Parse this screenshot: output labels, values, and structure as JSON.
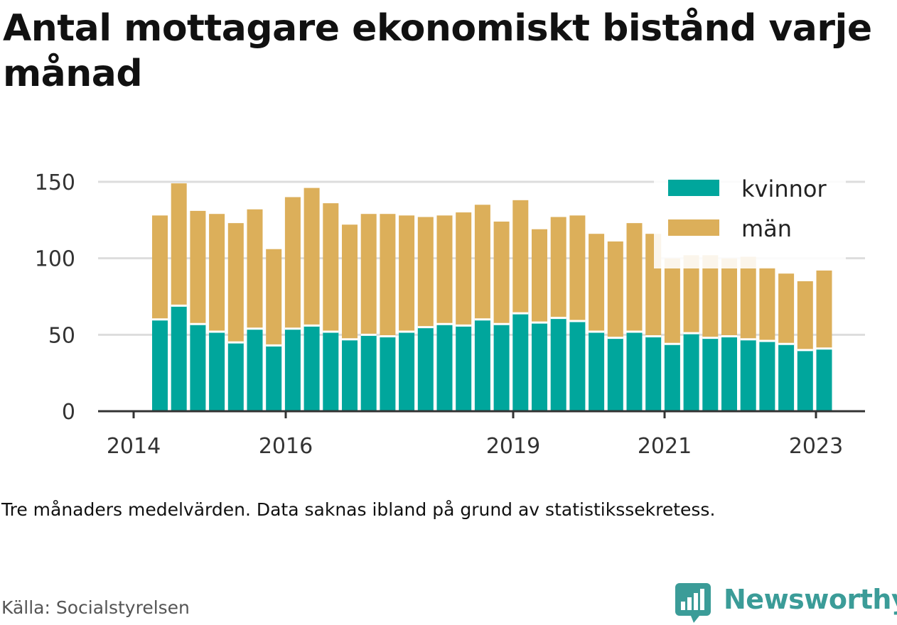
{
  "title": "Antal mottagare ekonomiskt bistånd varje månad",
  "note": "Tre månaders medelvärden. Data saknas ibland på grund av statistikssekretess.",
  "source": "Källa: Socialstyrelsen",
  "brand": {
    "name": "Newsworthy",
    "icon": "bar-chart-speech-icon"
  },
  "colors": {
    "kvinnor": "#00a69c",
    "man": "#dcaf5a",
    "grid": "#dddddd",
    "axis": "#333333"
  },
  "chart_data": {
    "type": "bar",
    "stacked": true,
    "ylim": [
      0,
      150
    ],
    "yticks": [
      0,
      50,
      100,
      150
    ],
    "xticks": [
      "2014",
      "2016",
      "2019",
      "2021",
      "2023"
    ],
    "grid": "horizontal",
    "legend_position": "top-right",
    "series": [
      {
        "name": "kvinnor",
        "values": [
          60,
          69,
          57,
          52,
          45,
          54,
          43,
          54,
          56,
          52,
          47,
          50,
          49,
          52,
          55,
          57,
          56,
          60,
          57,
          64,
          58,
          61,
          59,
          52,
          48,
          52,
          49,
          44,
          51,
          48,
          49,
          47,
          46,
          44,
          40,
          41
        ]
      },
      {
        "name": "män",
        "values": [
          68,
          80,
          74,
          77,
          78,
          78,
          63,
          86,
          90,
          84,
          75,
          79,
          80,
          76,
          72,
          71,
          74,
          75,
          67,
          74,
          61,
          66,
          69,
          64,
          63,
          71,
          67,
          56,
          51,
          54,
          51,
          54,
          48,
          46,
          45,
          51
        ]
      }
    ]
  }
}
